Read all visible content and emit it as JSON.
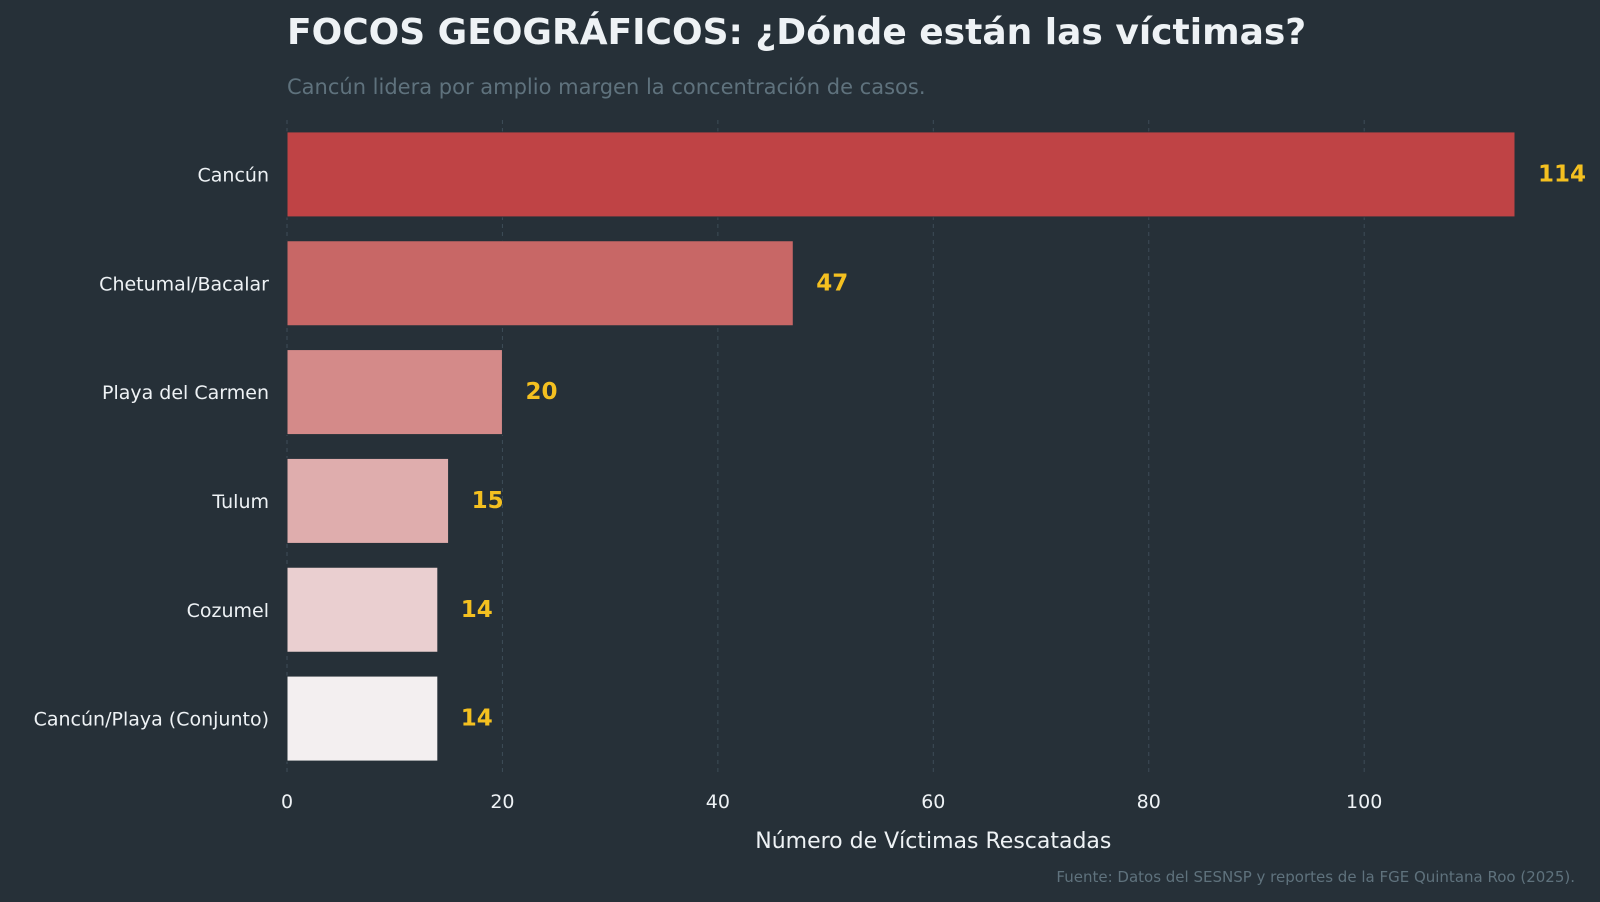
{
  "colors": {
    "background": "#263038",
    "value_label": "#f4c020",
    "bars": [
      "#bf4345",
      "#c86766",
      "#d48a89",
      "#dfadad",
      "#eacfd0",
      "#f3eff0"
    ]
  },
  "chart_data": {
    "type": "bar",
    "orientation": "horizontal",
    "title": "FOCOS GEOGRÁFICOS: ¿Dónde están las víctimas?",
    "subtitle": "Cancún lidera por amplio margen la concentración de casos.",
    "categories": [
      "Cancún",
      "Chetumal/Bacalar",
      "Playa del Carmen",
      "Tulum",
      "Cozumel",
      "Cancún/Playa (Conjunto)"
    ],
    "values": [
      114,
      47,
      20,
      15,
      14,
      14
    ],
    "xlabel": "Número de Víctimas Rescatadas",
    "ylabel": "",
    "xlim": [
      0,
      120
    ],
    "xticks": [
      0,
      20,
      40,
      60,
      80,
      100
    ],
    "grid": "vertical-dashed",
    "source": "Fuente: Datos del SESNSP y reportes de la FGE Quintana Roo (2025)."
  }
}
